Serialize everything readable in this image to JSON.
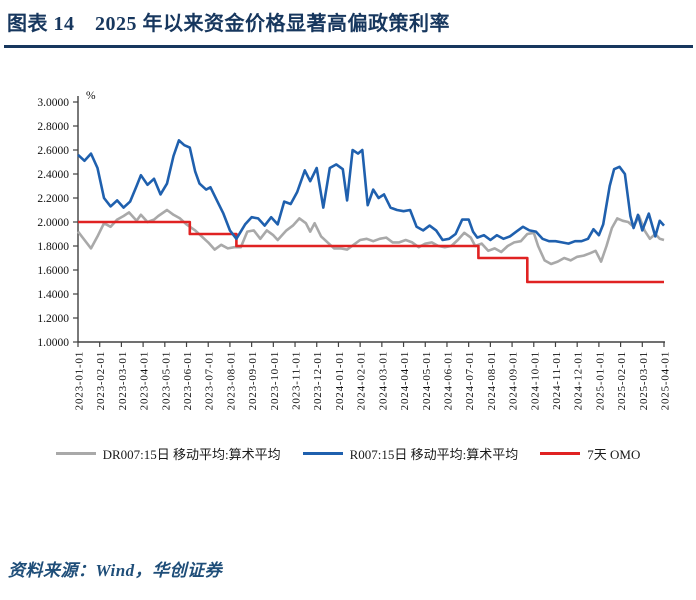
{
  "header": {
    "title": "图表 14　2025 年以来资金价格显著高偏政策利率"
  },
  "footer": {
    "source": "资料来源：Wind，华创证券"
  },
  "chart_data": {
    "type": "line",
    "title": "2025 年以来资金价格显著高偏政策利率",
    "unit_label": "%",
    "grid": false,
    "legend_position": "bottom",
    "ylim": [
      1.0,
      3.0
    ],
    "ytick_step": 0.2,
    "ytick_labels": [
      "3.0000",
      "2.8000",
      "2.6000",
      "2.4000",
      "2.2000",
      "2.0000",
      "1.8000",
      "1.6000",
      "1.4000",
      "1.2000",
      "1.0000"
    ],
    "x_categories": [
      "2023-01-01",
      "2023-02-01",
      "2023-03-01",
      "2023-04-01",
      "2023-05-01",
      "2023-06-01",
      "2023-07-01",
      "2023-08-01",
      "2023-09-01",
      "2023-10-01",
      "2023-11-01",
      "2023-12-01",
      "2024-01-01",
      "2024-02-01",
      "2024-03-01",
      "2024-04-01",
      "2024-05-01",
      "2024-06-01",
      "2024-07-01",
      "2024-08-01",
      "2024-09-01",
      "2024-10-01",
      "2024-11-01",
      "2024-12-01",
      "2025-01-01",
      "2025-02-01",
      "2025-03-01",
      "2025-04-01"
    ],
    "x_unit": "months since 2023-01-01 (fractional index)",
    "series": [
      {
        "name": "DR007:15日 移动平均:算术平均",
        "color": "#a9a9a9",
        "points": [
          [
            0,
            1.92
          ],
          [
            0.3,
            1.85
          ],
          [
            0.6,
            1.78
          ],
          [
            0.9,
            1.88
          ],
          [
            1.2,
            1.99
          ],
          [
            1.5,
            1.96
          ],
          [
            1.8,
            2.02
          ],
          [
            2.1,
            2.05
          ],
          [
            2.35,
            2.08
          ],
          [
            2.7,
            2.01
          ],
          [
            2.9,
            2.06
          ],
          [
            3.2,
            2.0
          ],
          [
            3.5,
            2.02
          ],
          [
            3.7,
            2.05
          ],
          [
            4.1,
            2.1
          ],
          [
            4.4,
            2.06
          ],
          [
            4.7,
            2.03
          ],
          [
            5.0,
            1.98
          ],
          [
            5.4,
            1.93
          ],
          [
            5.7,
            1.88
          ],
          [
            6.0,
            1.83
          ],
          [
            6.3,
            1.77
          ],
          [
            6.6,
            1.81
          ],
          [
            6.9,
            1.78
          ],
          [
            7.2,
            1.79
          ],
          [
            7.5,
            1.79
          ],
          [
            7.8,
            1.92
          ],
          [
            8.1,
            1.93
          ],
          [
            8.4,
            1.86
          ],
          [
            8.7,
            1.93
          ],
          [
            9.0,
            1.89
          ],
          [
            9.2,
            1.85
          ],
          [
            9.6,
            1.93
          ],
          [
            9.9,
            1.97
          ],
          [
            10.2,
            2.03
          ],
          [
            10.5,
            1.99
          ],
          [
            10.7,
            1.92
          ],
          [
            10.9,
            1.99
          ],
          [
            11.2,
            1.88
          ],
          [
            11.5,
            1.83
          ],
          [
            11.8,
            1.78
          ],
          [
            12.1,
            1.78
          ],
          [
            12.4,
            1.77
          ],
          [
            12.7,
            1.81
          ],
          [
            13.0,
            1.85
          ],
          [
            13.3,
            1.86
          ],
          [
            13.6,
            1.84
          ],
          [
            13.9,
            1.86
          ],
          [
            14.2,
            1.87
          ],
          [
            14.5,
            1.83
          ],
          [
            14.8,
            1.83
          ],
          [
            15.1,
            1.85
          ],
          [
            15.4,
            1.83
          ],
          [
            15.7,
            1.79
          ],
          [
            16.0,
            1.82
          ],
          [
            16.3,
            1.83
          ],
          [
            16.6,
            1.8
          ],
          [
            16.9,
            1.79
          ],
          [
            17.2,
            1.8
          ],
          [
            17.5,
            1.85
          ],
          [
            17.8,
            1.91
          ],
          [
            18.1,
            1.87
          ],
          [
            18.3,
            1.8
          ],
          [
            18.6,
            1.82
          ],
          [
            18.9,
            1.76
          ],
          [
            19.2,
            1.78
          ],
          [
            19.5,
            1.75
          ],
          [
            19.8,
            1.8
          ],
          [
            20.1,
            1.83
          ],
          [
            20.4,
            1.84
          ],
          [
            20.7,
            1.9
          ],
          [
            21.0,
            1.91
          ],
          [
            21.2,
            1.8
          ],
          [
            21.5,
            1.68
          ],
          [
            21.8,
            1.65
          ],
          [
            22.1,
            1.67
          ],
          [
            22.4,
            1.7
          ],
          [
            22.7,
            1.68
          ],
          [
            23.0,
            1.71
          ],
          [
            23.3,
            1.72
          ],
          [
            23.6,
            1.74
          ],
          [
            23.85,
            1.76
          ],
          [
            24.1,
            1.67
          ],
          [
            24.35,
            1.8
          ],
          [
            24.6,
            1.95
          ],
          [
            24.85,
            2.03
          ],
          [
            25.1,
            2.01
          ],
          [
            25.35,
            2.0
          ],
          [
            25.6,
            1.96
          ],
          [
            25.85,
            2.05
          ],
          [
            26.1,
            1.93
          ],
          [
            26.35,
            1.86
          ],
          [
            26.6,
            1.9
          ],
          [
            26.8,
            1.86
          ],
          [
            27.0,
            1.85
          ]
        ]
      },
      {
        "name": "R007:15日 移动平均:算术平均",
        "color": "#1f60ae",
        "points": [
          [
            0,
            2.56
          ],
          [
            0.3,
            2.51
          ],
          [
            0.6,
            2.57
          ],
          [
            0.9,
            2.45
          ],
          [
            1.2,
            2.2
          ],
          [
            1.5,
            2.13
          ],
          [
            1.8,
            2.18
          ],
          [
            2.1,
            2.12
          ],
          [
            2.4,
            2.17
          ],
          [
            2.7,
            2.3
          ],
          [
            2.9,
            2.39
          ],
          [
            3.2,
            2.31
          ],
          [
            3.5,
            2.36
          ],
          [
            3.8,
            2.23
          ],
          [
            4.1,
            2.32
          ],
          [
            4.4,
            2.55
          ],
          [
            4.65,
            2.68
          ],
          [
            4.9,
            2.64
          ],
          [
            5.15,
            2.62
          ],
          [
            5.4,
            2.42
          ],
          [
            5.6,
            2.32
          ],
          [
            5.9,
            2.27
          ],
          [
            6.1,
            2.29
          ],
          [
            6.4,
            2.18
          ],
          [
            6.7,
            2.07
          ],
          [
            7.0,
            1.93
          ],
          [
            7.3,
            1.86
          ],
          [
            7.7,
            1.98
          ],
          [
            8.0,
            2.04
          ],
          [
            8.3,
            2.03
          ],
          [
            8.6,
            1.97
          ],
          [
            8.9,
            2.04
          ],
          [
            9.2,
            1.98
          ],
          [
            9.5,
            2.17
          ],
          [
            9.8,
            2.15
          ],
          [
            10.1,
            2.25
          ],
          [
            10.45,
            2.43
          ],
          [
            10.7,
            2.34
          ],
          [
            11.0,
            2.45
          ],
          [
            11.3,
            2.12
          ],
          [
            11.6,
            2.45
          ],
          [
            11.9,
            2.48
          ],
          [
            12.2,
            2.44
          ],
          [
            12.4,
            2.18
          ],
          [
            12.65,
            2.6
          ],
          [
            12.9,
            2.57
          ],
          [
            13.1,
            2.6
          ],
          [
            13.35,
            2.14
          ],
          [
            13.6,
            2.27
          ],
          [
            13.85,
            2.2
          ],
          [
            14.1,
            2.23
          ],
          [
            14.4,
            2.12
          ],
          [
            14.7,
            2.1
          ],
          [
            15.0,
            2.09
          ],
          [
            15.3,
            2.1
          ],
          [
            15.6,
            1.96
          ],
          [
            15.9,
            1.93
          ],
          [
            16.2,
            1.97
          ],
          [
            16.5,
            1.93
          ],
          [
            16.8,
            1.85
          ],
          [
            17.1,
            1.86
          ],
          [
            17.4,
            1.9
          ],
          [
            17.7,
            2.02
          ],
          [
            18.0,
            2.02
          ],
          [
            18.2,
            1.92
          ],
          [
            18.4,
            1.87
          ],
          [
            18.7,
            1.89
          ],
          [
            19.0,
            1.85
          ],
          [
            19.3,
            1.89
          ],
          [
            19.6,
            1.86
          ],
          [
            19.9,
            1.88
          ],
          [
            20.2,
            1.92
          ],
          [
            20.5,
            1.96
          ],
          [
            20.8,
            1.93
          ],
          [
            21.1,
            1.92
          ],
          [
            21.4,
            1.86
          ],
          [
            21.7,
            1.84
          ],
          [
            22.0,
            1.84
          ],
          [
            22.3,
            1.83
          ],
          [
            22.6,
            1.82
          ],
          [
            22.9,
            1.84
          ],
          [
            23.2,
            1.84
          ],
          [
            23.5,
            1.86
          ],
          [
            23.75,
            1.94
          ],
          [
            24.0,
            1.89
          ],
          [
            24.2,
            1.98
          ],
          [
            24.5,
            2.3
          ],
          [
            24.7,
            2.44
          ],
          [
            24.95,
            2.46
          ],
          [
            25.2,
            2.4
          ],
          [
            25.45,
            2.05
          ],
          [
            25.6,
            1.95
          ],
          [
            25.8,
            2.06
          ],
          [
            26.0,
            1.93
          ],
          [
            26.3,
            2.07
          ],
          [
            26.6,
            1.88
          ],
          [
            26.8,
            2.01
          ],
          [
            27.0,
            1.97
          ]
        ]
      },
      {
        "name": "7天 OMO",
        "color": "#e02222",
        "step_points": [
          [
            0,
            2.0
          ],
          [
            5.15,
            2.0
          ],
          [
            5.15,
            1.9
          ],
          [
            7.3,
            1.9
          ],
          [
            7.3,
            1.8
          ],
          [
            18.45,
            1.8
          ],
          [
            18.45,
            1.7
          ],
          [
            20.7,
            1.7
          ],
          [
            20.7,
            1.5
          ],
          [
            27,
            1.5
          ]
        ],
        "step_values_note": "2.00 → 1.90 (2023-06) → 1.80 (2023-08) → 1.70 (2024-07) → 1.50 (2024-09)"
      }
    ]
  }
}
